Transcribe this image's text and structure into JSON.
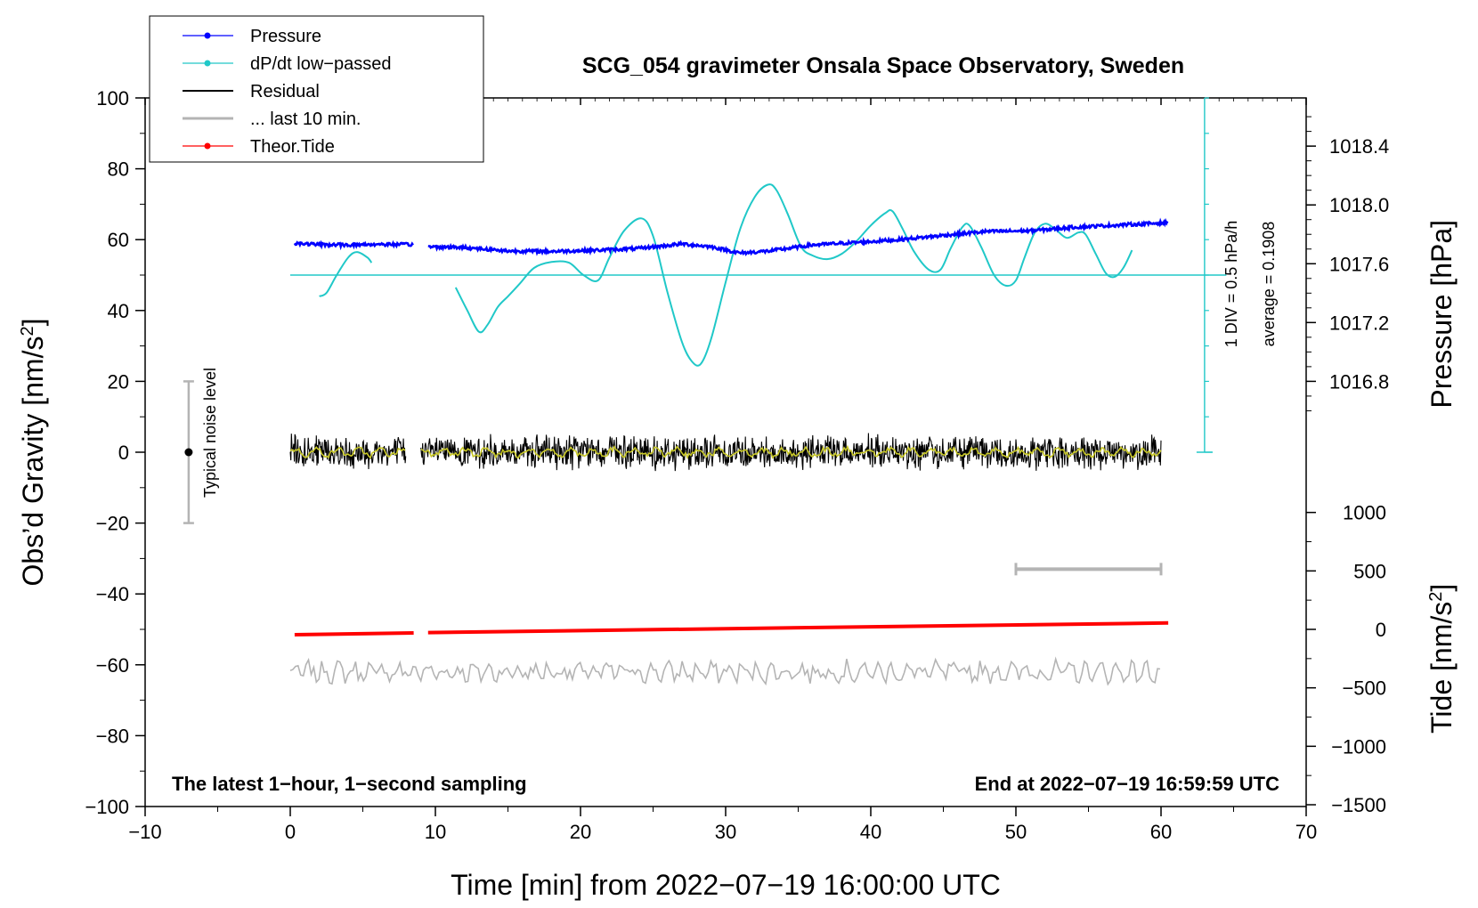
{
  "chart_data": {
    "type": "line",
    "title": "SCG_054 gravimeter Onsala Space Observatory, Sweden",
    "xlabel": "Time [min] from 2022−07−19 16:00:00 UTC",
    "ylabel_main": "Obs’d Gravity [nm/s",
    "ylabel_sup": "2",
    "ylabel_close": "]",
    "pressure_axis_label": "Pressure [hPa]",
    "tide_axis_label_main": "Tide [nm/s",
    "tide_axis_label_sup": "2",
    "tide_axis_label_close": "]",
    "xlim": [
      -10,
      70
    ],
    "ylim": [
      -100,
      100
    ],
    "x_ticks": [
      -10,
      0,
      10,
      20,
      30,
      40,
      50,
      60,
      70
    ],
    "x_tick_labels": [
      "−10",
      "0",
      "10",
      "20",
      "30",
      "40",
      "50",
      "60",
      "70"
    ],
    "y_ticks": [
      -100,
      -80,
      -60,
      -40,
      -20,
      0,
      20,
      40,
      60,
      80,
      100
    ],
    "y_tick_labels": [
      "−100",
      "−80",
      "−60",
      "−40",
      "−20",
      "0",
      "20",
      "40",
      "60",
      "80",
      "100"
    ],
    "pressure_axis": {
      "ticks": [
        1016.8,
        1017.2,
        1017.6,
        1018.0,
        1018.4
      ],
      "tick_labels": [
        "1016.8",
        "1017.2",
        "1017.6",
        "1018.0",
        "1018.4"
      ],
      "gravity_at_1016_8": 20,
      "gravity_per_hpa": 41.5
    },
    "tide_axis": {
      "ticks": [
        -1500,
        -1000,
        -500,
        0,
        500,
        1000
      ],
      "tick_labels": [
        "−1500",
        "−1000",
        "−500",
        "0",
        "500",
        "1000"
      ],
      "gravity_at_0": -50,
      "gravity_per_unit": 0.033
    },
    "legend": [
      {
        "label": "Pressure",
        "color": "#0000ff",
        "marker": true
      },
      {
        "label": "dP/dt low−passed",
        "color": "#20c8c8",
        "marker": true
      },
      {
        "label": "Residual",
        "color": "#000000",
        "marker": false
      },
      {
        "label": "... last 10 min.",
        "color": "#b4b4b4",
        "marker": false
      },
      {
        "label": "Theor.Tide",
        "color": "#ff0000",
        "marker": true
      }
    ],
    "series": [
      {
        "name": "Pressure",
        "color": "#0000ff",
        "segments": [
          {
            "x": [
              0.3,
              2,
              4,
              6,
              8.5
            ],
            "y": [
              59.0,
              58.6,
              58.5,
              58.7,
              58.6
            ]
          },
          {
            "x": [
              9.5,
              12,
              15,
              18,
              21,
              24,
              27,
              29,
              31,
              33,
              36,
              39,
              42,
              45,
              48,
              51,
              54,
              57,
              60.5
            ],
            "y": [
              58.0,
              57.8,
              56.8,
              56.7,
              57.0,
              57.5,
              58.8,
              58.0,
              56.2,
              56.8,
              58.5,
              59.2,
              60.0,
              61.2,
              62.3,
              62.5,
              63.5,
              64.1,
              64.8
            ]
          }
        ]
      },
      {
        "name": "dP/dt low-passed",
        "color": "#20c8c8",
        "baseline": 50,
        "segments": [
          {
            "x": [
              2.0,
              2.5,
              3.2,
              4.0,
              4.6,
              5.3,
              5.6
            ],
            "y": [
              44,
              45,
              50,
              55,
              56.5,
              55,
              53.5
            ]
          },
          {
            "x": [
              11.4,
              12.2,
              13.0,
              13.6,
              14.3,
              15.0,
              15.8,
              16.8,
              18.0,
              19.2,
              20.2,
              21.2,
              22.0,
              23.0,
              24.2,
              25.0,
              26.0,
              27.0,
              27.7,
              28.3,
              29.0,
              30.0,
              31.0,
              32.0,
              32.9,
              33.5,
              34.3,
              35.2,
              36.0,
              37.0,
              38.0,
              39.0,
              40.0,
              41.0,
              41.5,
              42.2,
              43.0,
              44.0,
              44.8,
              45.5,
              46.3,
              46.8,
              47.6,
              48.5,
              49.3,
              50.0,
              50.6,
              51.3,
              52.0,
              52.7,
              53.5,
              54.3,
              54.8,
              55.5,
              56.2,
              56.8,
              57.4,
              58.0
            ],
            "y": [
              46.5,
              40,
              34,
              36,
              41,
              44,
              47.5,
              52,
              53.7,
              53.5,
              50,
              48.5,
              55,
              62.5,
              66,
              61,
              45,
              31,
              25.5,
              25,
              32,
              48,
              63,
              72,
              75.5,
              74,
              67,
              58,
              55.5,
              54.5,
              56,
              59.5,
              64,
              67.5,
              68,
              63,
              56.5,
              51.5,
              51.5,
              57.5,
              63.5,
              64,
              58,
              50,
              47,
              48.5,
              55,
              62,
              64.5,
              63,
              60.5,
              62,
              61.5,
              56,
              50.5,
              49.5,
              52,
              57
            ]
          }
        ]
      },
      {
        "name": "Residual",
        "color": "#000000",
        "segments": [
          {
            "x": [
              0,
              8
            ],
            "y": [
              0,
              0
            ]
          },
          {
            "x": [
              9,
              60
            ],
            "y": [
              0,
              0
            ]
          }
        ],
        "amplitude": 5
      },
      {
        "name": "... last 10 min.",
        "color": "#b4b4b4",
        "x_range": [
          50,
          60
        ],
        "y_level": -33
      },
      {
        "name": "Theor.Tide",
        "color": "#ff0000",
        "segments": [
          {
            "x": [
              0.3,
              8.5
            ],
            "y": [
              -51.5,
              -51.0
            ]
          },
          {
            "x": [
              9.5,
              60.5
            ],
            "y": [
              -50.9,
              -48.2
            ]
          }
        ]
      },
      {
        "name": "Residual (offset copy)",
        "color": "#b4b4b4",
        "segments": [
          {
            "x": [
              0,
              60
            ],
            "y": [
              -62,
              -62
            ]
          }
        ],
        "amplitude": 3
      }
    ],
    "noise_bar": {
      "x": -7,
      "y": 0,
      "y_min": -20,
      "y_max": 20,
      "label": "Typical noise level"
    },
    "pressure_scale_bar": {
      "x": 63,
      "y_min": 0,
      "y_max": 100,
      "label1": "1 DIV = 0.5 hPa/h",
      "label2": "average = 0.1908"
    },
    "annotations": {
      "bottom_left": "The latest 1−hour, 1−second sampling",
      "bottom_right": "End at 2022−07−19 16:59:59 UTC"
    }
  }
}
